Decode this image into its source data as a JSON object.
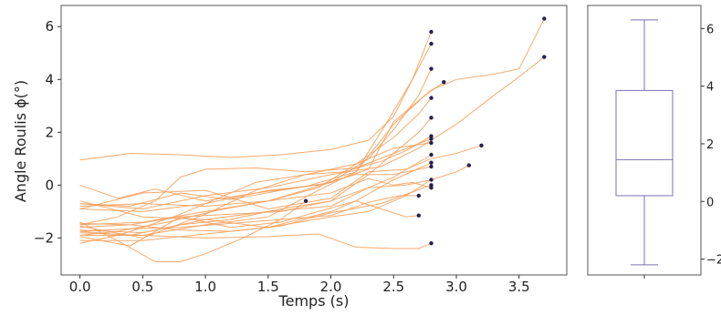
{
  "chart_data": [
    {
      "type": "line",
      "xlabel": "Temps (s)",
      "ylabel": "Angle  Roulis ϕ(°)",
      "xlim": [
        -0.15,
        3.88
      ],
      "ylim": [
        -3.4,
        6.8
      ],
      "xticks": [
        0.0,
        0.5,
        1.0,
        1.5,
        2.0,
        2.5,
        3.0,
        3.5
      ],
      "xtick_labels": [
        "0.0",
        "0.5",
        "1.0",
        "1.5",
        "2.0",
        "2.5",
        "3.0",
        "3.5"
      ],
      "yticks": [
        -2,
        0,
        2,
        4,
        6
      ],
      "ytick_labels": [
        "−2",
        "0",
        "2",
        "4",
        "6"
      ],
      "line_color": "#f5a15e",
      "marker_color": "#25204f",
      "series": [
        {
          "x": [
            0,
            0.4,
            0.8,
            1.2,
            1.6,
            2.0,
            2.3,
            2.5,
            2.65,
            2.8
          ],
          "y": [
            0.95,
            1.2,
            1.15,
            1.05,
            1.15,
            1.35,
            1.7,
            2.6,
            4.0,
            5.8
          ]
        },
        {
          "x": [
            0,
            0.3,
            0.6,
            1.0,
            1.4,
            1.8,
            2.2,
            2.45,
            2.65,
            2.8
          ],
          "y": [
            0.0,
            -0.5,
            -0.15,
            -0.6,
            -0.3,
            -0.05,
            0.5,
            2.4,
            4.0,
            5.35
          ]
        },
        {
          "x": [
            0,
            0.4,
            0.8,
            1.2,
            1.6,
            2.0,
            2.3,
            2.5,
            2.7,
            2.8
          ],
          "y": [
            -0.7,
            -0.8,
            -0.3,
            -0.55,
            -0.2,
            0.1,
            1.0,
            2.1,
            3.4,
            4.4
          ]
        },
        {
          "x": [
            0,
            0.3,
            0.7,
            1.1,
            1.5,
            1.9,
            2.2,
            2.5,
            2.7,
            2.8
          ],
          "y": [
            -1.9,
            -1.75,
            -1.4,
            -0.95,
            -0.6,
            -0.1,
            0.8,
            1.8,
            2.7,
            3.3
          ]
        },
        {
          "x": [
            0,
            0.4,
            0.8,
            1.2,
            1.6,
            2.0,
            2.3,
            2.5,
            2.7,
            2.8
          ],
          "y": [
            -1.6,
            -1.5,
            -1.2,
            -1.1,
            -1.0,
            -0.6,
            0.4,
            1.2,
            2.0,
            2.55
          ]
        },
        {
          "x": [
            0,
            0.5,
            1.0,
            1.4,
            1.8,
            2.1,
            2.4,
            2.6,
            2.8
          ],
          "y": [
            -1.55,
            -2.0,
            -1.1,
            -0.2,
            0.4,
            0.5,
            0.9,
            1.3,
            1.85
          ]
        },
        {
          "x": [
            0,
            0.3,
            0.6,
            0.8,
            1.0,
            1.4,
            1.8,
            2.2,
            2.5,
            2.8
          ],
          "y": [
            -1.5,
            -1.2,
            -0.6,
            0.3,
            0.6,
            0.65,
            0.5,
            0.65,
            1.2,
            1.75
          ]
        },
        {
          "x": [
            0,
            0.4,
            0.8,
            1.2,
            1.6,
            2.0,
            2.3,
            2.5,
            2.8
          ],
          "y": [
            -1.75,
            -1.9,
            -1.5,
            -1.3,
            -0.9,
            -0.6,
            -0.1,
            0.3,
            1.15
          ]
        },
        {
          "x": [
            0,
            0.4,
            0.8,
            1.2,
            1.6,
            1.9,
            2.2,
            2.5,
            2.8
          ],
          "y": [
            -1.95,
            -2.3,
            -1.2,
            -1.6,
            -1.4,
            -1.0,
            -0.6,
            0.2,
            0.85
          ]
        },
        {
          "x": [
            0,
            0.5,
            1.0,
            1.5,
            1.9,
            2.2,
            2.5,
            2.8
          ],
          "y": [
            -0.9,
            -1.0,
            -0.7,
            -0.2,
            0.0,
            0.4,
            0.4,
            0.7
          ]
        },
        {
          "x": [
            0,
            0.5,
            1.0,
            1.5,
            2.0,
            2.3,
            2.6,
            2.8
          ],
          "y": [
            -2.1,
            -2.1,
            -1.85,
            -1.6,
            -1.2,
            -1.0,
            -0.4,
            0.2
          ]
        },
        {
          "x": [
            0,
            0.4,
            0.8,
            1.2,
            1.6,
            2.0,
            2.4,
            2.6,
            2.8
          ],
          "y": [
            -1.45,
            -1.5,
            -1.7,
            -1.75,
            -1.55,
            -1.05,
            -0.7,
            -0.35,
            0.0
          ]
        },
        {
          "x": [
            0,
            0.5,
            1.0,
            1.5,
            2.0,
            2.3,
            2.5,
            2.65,
            2.8
          ],
          "y": [
            -0.8,
            -0.7,
            -0.8,
            -0.6,
            -0.3,
            0.25,
            0.0,
            0.1,
            -0.1
          ]
        },
        {
          "x": [
            0,
            0.4,
            0.8,
            1.2,
            1.6,
            2.0,
            2.3,
            2.55,
            2.7
          ],
          "y": [
            -1.75,
            -1.65,
            -1.6,
            -1.45,
            -1.3,
            -1.15,
            -0.65,
            -0.4,
            -0.4
          ]
        },
        {
          "x": [
            0,
            0.5,
            1.0,
            1.5,
            2.0,
            2.2,
            2.4,
            2.6,
            2.7
          ],
          "y": [
            -0.6,
            -1.2,
            -1.3,
            -1.6,
            -1.0,
            -0.6,
            -0.9,
            -1.2,
            -1.15
          ]
        },
        {
          "x": [
            0,
            0.5,
            1.0,
            1.5,
            1.9,
            2.2,
            2.5,
            2.7,
            2.8
          ],
          "y": [
            -1.8,
            -1.9,
            -2.0,
            -1.95,
            -1.85,
            -2.35,
            -2.4,
            -2.4,
            -2.2
          ]
        },
        {
          "x": [
            0,
            0.3,
            0.5,
            0.8,
            1.1,
            1.4,
            1.8,
            2.2,
            2.5,
            2.8
          ],
          "y": [
            -2.2,
            -1.9,
            -1.6,
            -1.1,
            -0.5,
            0.1,
            0.4,
            0.8,
            1.4,
            1.6
          ]
        },
        {
          "x": [
            0,
            0.3,
            0.6,
            0.8,
            1.0,
            1.3,
            1.6,
            1.8
          ],
          "y": [
            -1.4,
            -2.1,
            -2.9,
            -2.9,
            -2.6,
            -2.0,
            -1.3,
            -0.6
          ]
        },
        {
          "x": [
            0,
            0.5,
            1.0,
            1.5,
            1.9,
            2.2,
            2.5,
            2.75,
            2.9
          ],
          "y": [
            -1.9,
            -1.9,
            -1.5,
            -1.2,
            -0.2,
            0.5,
            2.3,
            3.4,
            3.9
          ]
        },
        {
          "x": [
            0,
            0.5,
            1.0,
            1.5,
            2.0,
            2.3,
            2.6,
            2.8,
            3.0,
            3.1
          ],
          "y": [
            -1.7,
            -1.8,
            -1.3,
            -1.0,
            -0.8,
            -0.1,
            0.0,
            0.2,
            0.5,
            0.75
          ]
        },
        {
          "x": [
            0,
            0.5,
            1.0,
            1.5,
            2.0,
            2.3,
            2.6,
            2.8,
            3.0,
            3.2
          ],
          "y": [
            -0.9,
            -0.3,
            -0.2,
            -0.9,
            -0.5,
            0.5,
            0.6,
            1.0,
            1.2,
            1.5
          ]
        },
        {
          "x": [
            0,
            0.5,
            1.0,
            1.5,
            2.0,
            2.3,
            2.5,
            2.8,
            3.0,
            3.3,
            3.5,
            3.7
          ],
          "y": [
            -1.5,
            -1.4,
            -1.0,
            -0.6,
            0.1,
            0.6,
            2.4,
            3.6,
            4.0,
            4.2,
            4.4,
            6.3
          ]
        },
        {
          "x": [
            0,
            0.5,
            1.0,
            1.5,
            2.0,
            2.4,
            2.7,
            3.0,
            3.3,
            3.5,
            3.7
          ],
          "y": [
            -0.7,
            -0.9,
            -0.4,
            -0.1,
            0.4,
            0.7,
            1.4,
            2.3,
            3.4,
            4.1,
            4.85
          ]
        }
      ]
    },
    {
      "type": "box",
      "ylim": [
        -2.55,
        6.8
      ],
      "yticks": [
        -2,
        0,
        2,
        4,
        6
      ],
      "ytick_labels": [
        "−2",
        "0",
        "2",
        "4",
        "6"
      ],
      "color": "#7b70b3",
      "whisker_low": -2.2,
      "q1": 0.2,
      "median": 1.45,
      "q3": 3.85,
      "whisker_high": 6.3
    }
  ]
}
